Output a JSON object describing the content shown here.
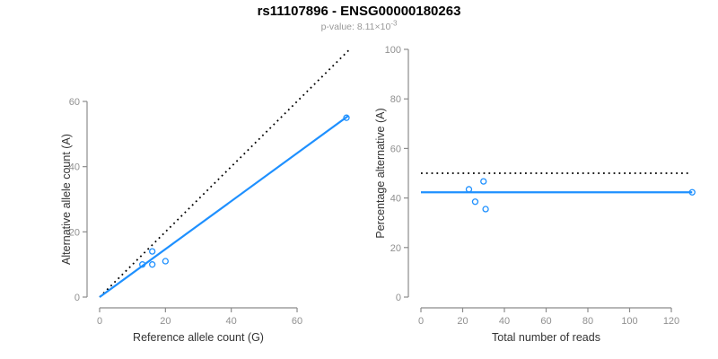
{
  "header": {
    "title": "rs11107896 - ENSG00000180263",
    "pvalue_prefix": "p-value: 8.11",
    "pvalue_times": "×10",
    "pvalue_exponent": "-3"
  },
  "colors": {
    "accent_blue": "#1E90FF",
    "dotted_black": "#000000",
    "axis_gray": "#8C8C8C",
    "tick_label_gray": "#909090",
    "axis_title_dark": "#333333",
    "subtitle_gray": "#999999",
    "background": "#FFFFFF"
  },
  "chart_data": [
    {
      "type": "scatter",
      "title": "",
      "xlabel": "Reference allele count (G)",
      "ylabel": "Alternative allele count (A)",
      "xlim": [
        0,
        77
      ],
      "ylim": [
        0,
        77
      ],
      "xticks": [
        0,
        20,
        40,
        60
      ],
      "yticks": [
        0,
        20,
        40,
        60
      ],
      "grid": false,
      "points": [
        {
          "x": 13,
          "y": 10
        },
        {
          "x": 16,
          "y": 14
        },
        {
          "x": 16,
          "y": 10
        },
        {
          "x": 20,
          "y": 11
        },
        {
          "x": 75,
          "y": 55
        }
      ],
      "lines": [
        {
          "name": "identity-line",
          "style": "dotted",
          "color": "#000000",
          "from": [
            0,
            0
          ],
          "to": [
            75.7,
            75.7
          ]
        },
        {
          "name": "fit-line",
          "style": "solid",
          "color": "#1E90FF",
          "from": [
            0,
            0
          ],
          "to": [
            75.6,
            55.6
          ]
        }
      ]
    },
    {
      "type": "scatter",
      "title": "",
      "xlabel": "Total number of reads",
      "ylabel": "Percentage alternative (A)",
      "xlim": [
        0,
        133
      ],
      "ylim": [
        0,
        100
      ],
      "xticks": [
        0,
        20,
        40,
        60,
        80,
        100,
        120
      ],
      "yticks": [
        0,
        20,
        40,
        60,
        80,
        100
      ],
      "grid": false,
      "points": [
        {
          "x": 23,
          "y": 43.5
        },
        {
          "x": 30,
          "y": 46.7
        },
        {
          "x": 26,
          "y": 38.5
        },
        {
          "x": 31,
          "y": 35.5
        },
        {
          "x": 130,
          "y": 42.3
        }
      ],
      "lines": [
        {
          "name": "expected-50pct-line",
          "style": "dotted",
          "color": "#000000",
          "from": [
            0,
            50
          ],
          "to": [
            128.5,
            50
          ]
        },
        {
          "name": "estimate-line",
          "style": "solid",
          "color": "#1E90FF",
          "from": [
            0,
            42.3
          ],
          "to": [
            130,
            42.3
          ]
        }
      ]
    }
  ]
}
